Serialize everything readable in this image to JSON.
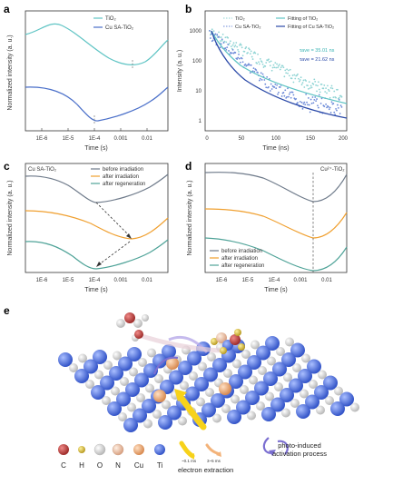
{
  "panels": {
    "a": {
      "letter": "a",
      "ylabel": "Normalized intensity (a. u.)",
      "xlabel": "Time (s)",
      "ticks": [
        "1E-6",
        "1E-5",
        "1E-4",
        "0.001",
        "0.01"
      ],
      "legend": [
        "TiO₂",
        "Cu SA-TiO₂"
      ]
    },
    "b": {
      "letter": "b",
      "ylabel": "Intensity (a. u.)",
      "xlabel": "Time (ns)",
      "xticks": [
        "0",
        "50",
        "100",
        "150",
        "200"
      ],
      "yticks": [
        "1000",
        "100",
        "10",
        "1"
      ],
      "legend": [
        "TiO₂",
        "Cu SA-TiO₂",
        "Fitting of TiO₂",
        "Fitting of Cu SA-TiO₂"
      ],
      "tau1": "τave = 35.01 ns",
      "tau2": "τave = 21.62 ns"
    },
    "c": {
      "letter": "c",
      "title": "Cu SA-TiO₂",
      "ylabel": "Normalized intensity (a. u.)",
      "xlabel": "Time (s)",
      "ticks": [
        "1E-6",
        "1E-5",
        "1E-4",
        "0.001",
        "0.01"
      ],
      "legend": [
        "before irradiation",
        "after irradiation",
        "after regeneration"
      ]
    },
    "d": {
      "letter": "d",
      "title": "Cu²⁺-TiO₂",
      "ylabel": "Normalized intensity (a. u.)",
      "xlabel": "Time (s)",
      "ticks": [
        "1E-6",
        "1E-5",
        "1E-4",
        "0.001",
        "0.01"
      ],
      "legend": [
        "before irradiation",
        "after irradiation",
        "after regeneration"
      ]
    },
    "e": {
      "letter": "e"
    }
  },
  "colors": {
    "teal": "#5fc4c4",
    "blue": "#4a6fc9",
    "gray": "#6e7a8a",
    "orange": "#f0a030",
    "green": "#4fa398",
    "atom_C": "#c4403e",
    "atom_H": "#d8c04a",
    "atom_O": "#f2f2f2",
    "atom_N": "#f0c0a0",
    "atom_Cu": "#f1b07a",
    "atom_Ti": "#5577e0"
  },
  "legend_e": {
    "atoms": [
      "C",
      "H",
      "O",
      "N",
      "Cu",
      "Ti"
    ],
    "small1": "~0.1 ms",
    "small2": "3~5 ms",
    "electron_extraction": "electron extraction",
    "photo_line1": "photo-induced",
    "photo_line2": "activation process"
  },
  "chart_data": [
    {
      "type": "line",
      "panel": "a",
      "xscale": "log",
      "x": [
        1e-07,
        1e-06,
        1e-05,
        3e-05,
        0.0001,
        0.0003,
        0.001,
        0.003,
        0.01,
        0.1
      ],
      "series": [
        {
          "name": "TiO₂",
          "values": [
            0.93,
            0.95,
            0.97,
            0.94,
            0.9,
            0.86,
            0.83,
            0.81,
            0.82,
            0.9
          ]
        },
        {
          "name": "Cu SA-TiO₂",
          "values": [
            0.62,
            0.61,
            0.54,
            0.48,
            0.4,
            0.43,
            0.47,
            0.52,
            0.58,
            0.66
          ]
        }
      ]
    },
    {
      "type": "scatter",
      "panel": "b",
      "yscale": "log",
      "xlim": [
        0,
        200
      ],
      "ylim": [
        0.5,
        2000
      ],
      "series": [
        {
          "name": "TiO₂",
          "tau": 35.01
        },
        {
          "name": "Cu SA-TiO₂",
          "tau": 21.62
        },
        {
          "name": "Fitting of TiO₂"
        },
        {
          "name": "Fitting of Cu SA-TiO₂"
        }
      ]
    },
    {
      "type": "line",
      "panel": "c",
      "xscale": "log",
      "series": [
        {
          "name": "before irradiation",
          "min_at": 0.0001
        },
        {
          "name": "after irradiation",
          "min_at": 0.004
        },
        {
          "name": "after regeneration",
          "min_at": 0.0001
        }
      ]
    },
    {
      "type": "line",
      "panel": "d",
      "xscale": "log",
      "series": [
        {
          "name": "before irradiation",
          "min_at": 0.004
        },
        {
          "name": "after irradiation",
          "min_at": 0.004
        },
        {
          "name": "after regeneration",
          "min_at": 0.004
        }
      ]
    }
  ]
}
